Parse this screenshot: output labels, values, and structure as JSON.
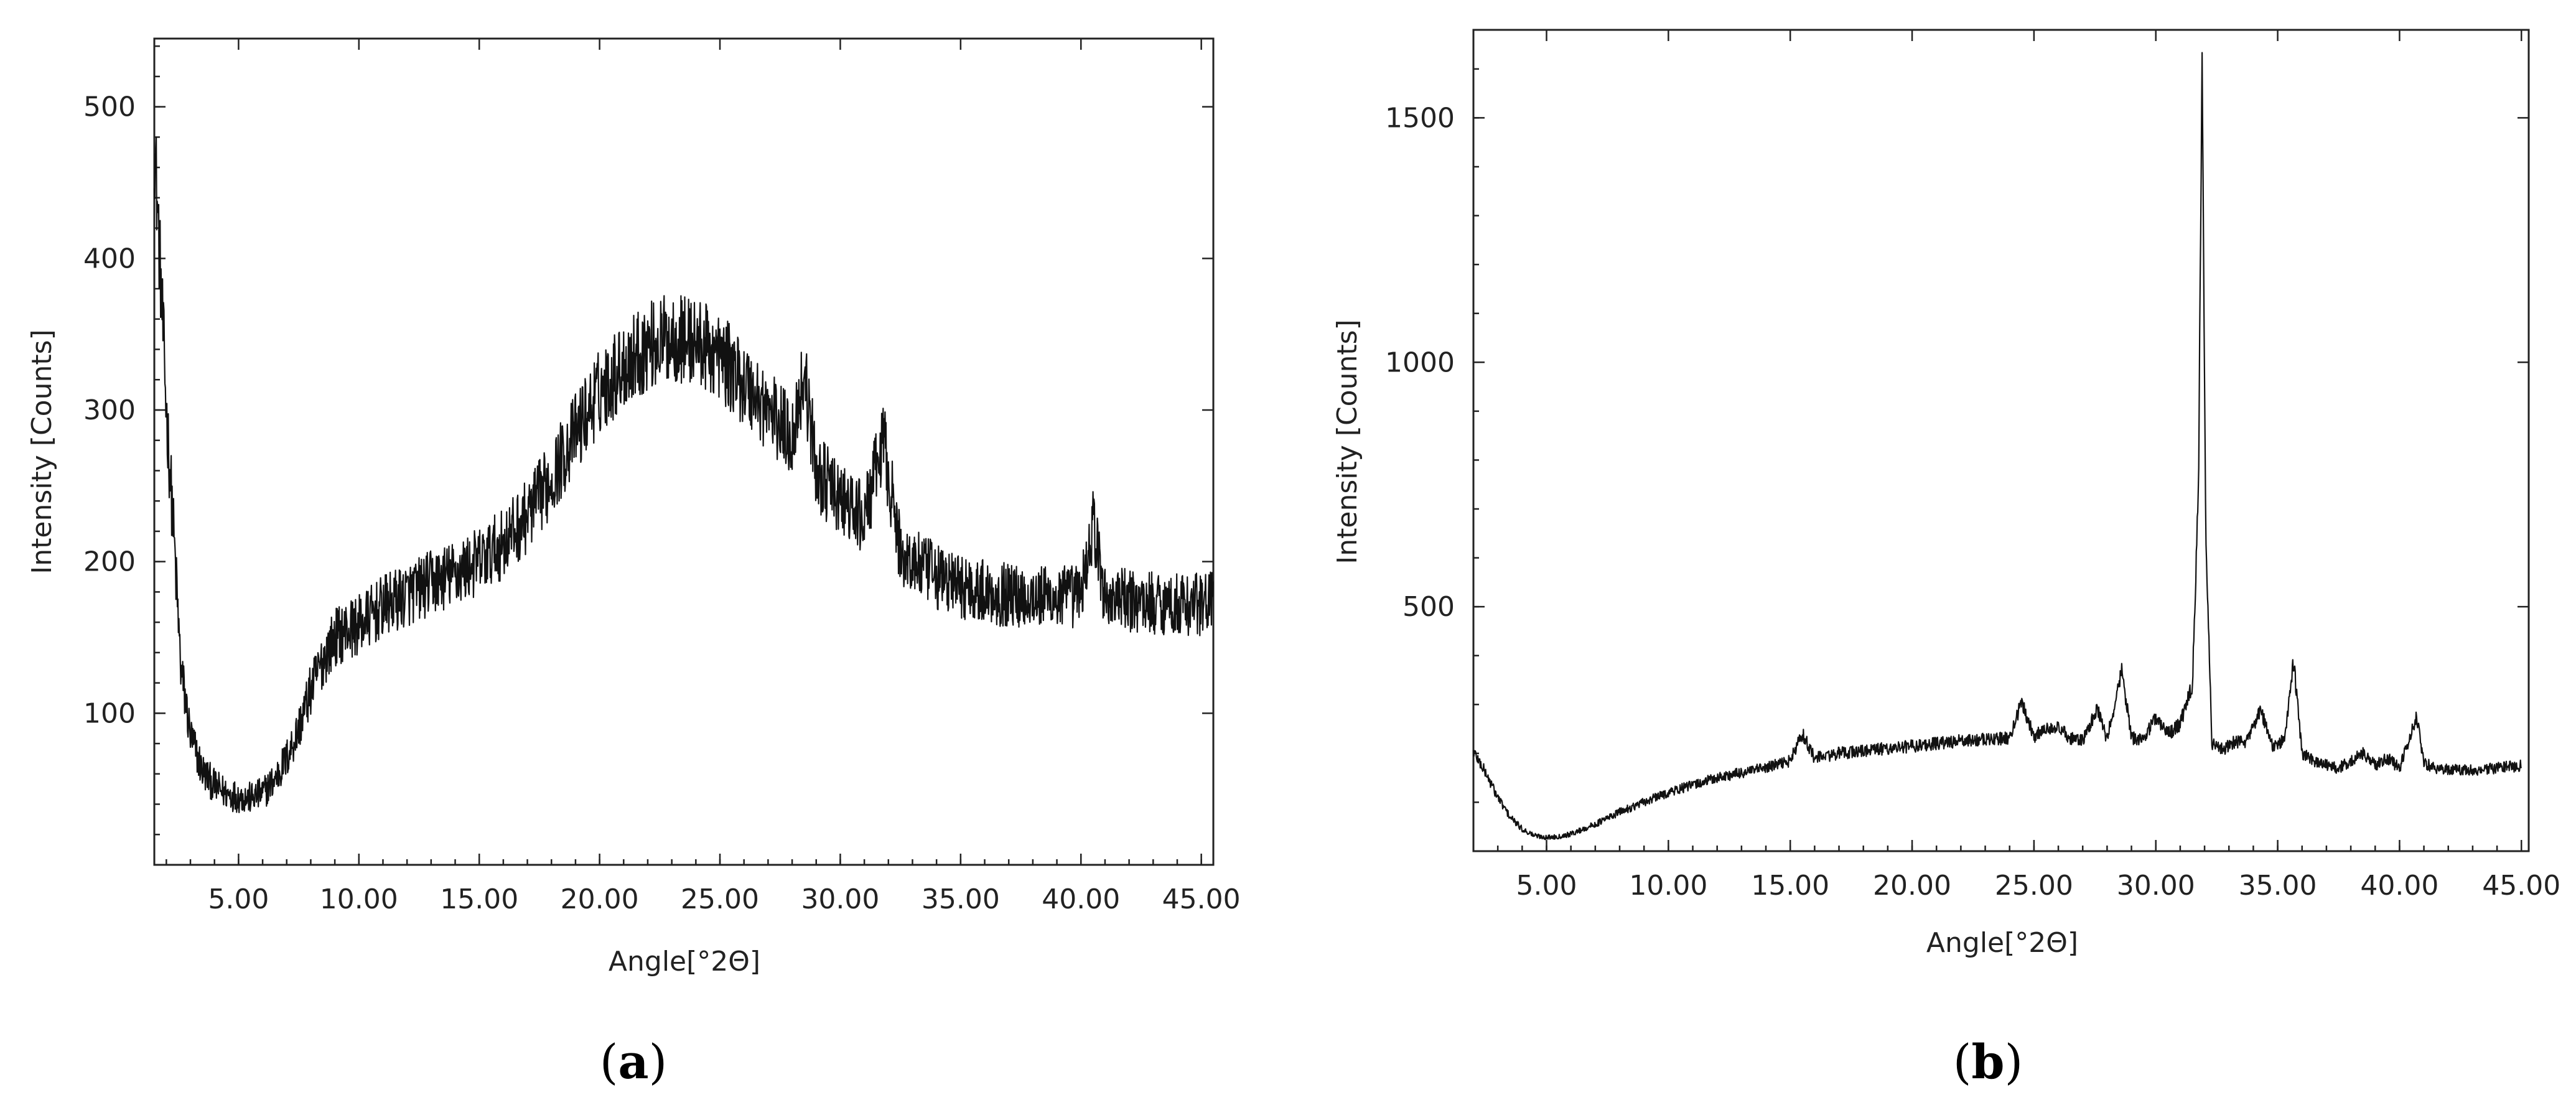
{
  "chart_data": [
    {
      "panel": "(a)",
      "panel_letter": "a",
      "type": "line",
      "xlabel": "Angle[°2Θ]",
      "ylabel": "Intensity [Counts]",
      "xlim": [
        1.5,
        45.5
      ],
      "ylim": [
        0,
        545
      ],
      "x_ticks": [
        "5.00",
        "10.00",
        "15.00",
        "20.00",
        "25.00",
        "30.00",
        "35.00",
        "40.00",
        "45.00"
      ],
      "x_tick_values": [
        5,
        10,
        15,
        20,
        25,
        30,
        35,
        40,
        45
      ],
      "y_ticks": [
        "100",
        "200",
        "300",
        "400",
        "500"
      ],
      "y_tick_values": [
        100,
        200,
        300,
        400,
        500
      ],
      "grid": false,
      "series": [
        {
          "x": [
            1.5,
            1.7,
            2.0,
            2.3,
            2.6,
            3.0,
            3.5,
            4.0,
            4.5,
            5.0,
            5.5,
            6.0,
            6.5,
            7.0,
            7.5,
            8.0,
            8.5,
            9.0,
            9.5,
            10.0,
            11.0,
            12.0,
            13.0,
            14.0,
            15.0,
            16.0,
            17.0,
            18.0,
            19.0,
            20.0,
            21.0,
            22.0,
            23.0,
            24.0,
            25.0,
            26.0,
            27.0,
            28.0,
            28.5,
            29.0,
            30.0,
            31.0,
            31.8,
            32.5,
            33.0,
            34.0,
            35.0,
            36.0,
            37.0,
            38.0,
            39.0,
            40.0,
            40.5,
            41.0,
            42.0,
            43.0,
            44.0,
            45.0,
            45.5
          ],
          "y": [
            480,
            410,
            300,
            220,
            130,
            85,
            62,
            52,
            47,
            45,
            44,
            47,
            56,
            70,
            90,
            115,
            135,
            150,
            155,
            158,
            170,
            178,
            186,
            192,
            200,
            212,
            230,
            255,
            285,
            312,
            330,
            342,
            348,
            345,
            335,
            318,
            300,
            282,
            325,
            260,
            240,
            228,
            280,
            205,
            200,
            190,
            184,
            180,
            178,
            177,
            176,
            178,
            225,
            176,
            174,
            173,
            172,
            172,
            175
          ]
        }
      ]
    },
    {
      "panel": "(b)",
      "panel_letter": "b",
      "type": "line",
      "xlabel": "Angle[°2Θ]",
      "ylabel": "Intensity [Counts]",
      "xlim": [
        2.0,
        45.3
      ],
      "ylim": [
        0,
        1680
      ],
      "x_ticks": [
        "5.00",
        "10.00",
        "15.00",
        "20.00",
        "25.00",
        "30.00",
        "35.00",
        "40.00",
        "45.00"
      ],
      "x_tick_values": [
        5,
        10,
        15,
        20,
        25,
        30,
        35,
        40,
        45
      ],
      "y_ticks": [
        "500",
        "1000",
        "1500"
      ],
      "y_tick_values": [
        500,
        1000,
        1500
      ],
      "grid": false,
      "series": [
        {
          "x": [
            2.0,
            2.5,
            3.0,
            3.5,
            4.0,
            4.5,
            5.0,
            5.5,
            6.0,
            6.5,
            7.0,
            8.0,
            9.0,
            10.0,
            11.0,
            12.0,
            13.0,
            14.0,
            15.0,
            15.5,
            16.0,
            17.0,
            18.0,
            19.0,
            20.0,
            21.0,
            22.0,
            23.0,
            24.0,
            24.5,
            25.0,
            25.8,
            26.5,
            27.0,
            27.6,
            28.0,
            28.6,
            29.0,
            29.5,
            30.0,
            30.5,
            31.0,
            31.5,
            31.75,
            31.9,
            32.05,
            32.3,
            32.8,
            33.3,
            33.7,
            34.3,
            34.8,
            35.3,
            35.65,
            36.0,
            36.5,
            37.0,
            37.5,
            38.0,
            38.5,
            39.0,
            39.5,
            40.0,
            40.4,
            40.7,
            41.0,
            41.5,
            42.0,
            43.0,
            44.0,
            45.0
          ],
          "y": [
            205,
            160,
            110,
            70,
            45,
            32,
            28,
            30,
            35,
            45,
            55,
            80,
            100,
            120,
            135,
            150,
            160,
            170,
            185,
            240,
            190,
            200,
            205,
            210,
            215,
            220,
            225,
            228,
            232,
            305,
            235,
            258,
            232,
            225,
            290,
            228,
            370,
            232,
            230,
            275,
            240,
            260,
            340,
            750,
            1610,
            650,
            220,
            210,
            225,
            220,
            290,
            210,
            230,
            390,
            200,
            185,
            175,
            170,
            185,
            200,
            175,
            190,
            170,
            230,
            275,
            180,
            170,
            168,
            165,
            170,
            175
          ]
        }
      ]
    }
  ]
}
